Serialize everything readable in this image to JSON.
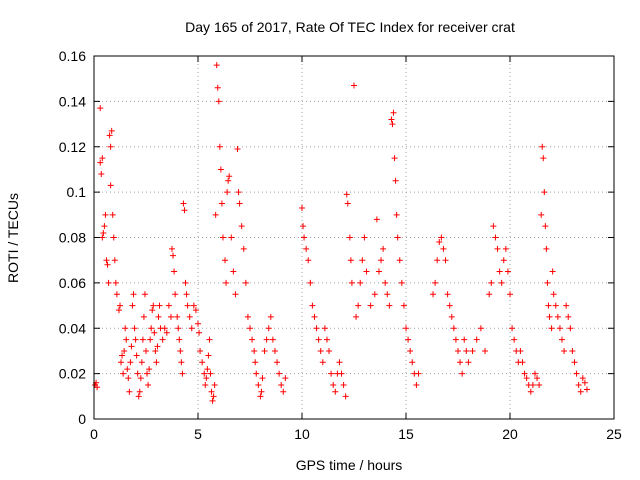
{
  "chart_data": {
    "type": "scatter",
    "title": "Day 165 of 2017, Rate Of TEC Index for receiver crat",
    "xlabel": "GPS time / hours",
    "ylabel": "ROTI / TECUs",
    "xlim": [
      0,
      25
    ],
    "ylim": [
      0,
      0.16
    ],
    "xticks": [
      0,
      5,
      10,
      15,
      20,
      25
    ],
    "yticks": [
      0,
      0.02,
      0.04,
      0.06,
      0.08,
      0.1,
      0.12,
      0.14,
      0.16
    ],
    "grid": true,
    "legend": "none",
    "marker": "plus",
    "color": "#ff0000",
    "series": [
      {
        "points": [
          [
            0.05,
            0.015
          ],
          [
            0.1,
            0.016
          ],
          [
            0.15,
            0.014
          ],
          [
            0.3,
            0.137
          ],
          [
            0.3,
            0.113
          ],
          [
            0.35,
            0.108
          ],
          [
            0.4,
            0.115
          ],
          [
            0.4,
            0.08
          ],
          [
            0.45,
            0.082
          ],
          [
            0.5,
            0.085
          ],
          [
            0.55,
            0.09
          ],
          [
            0.6,
            0.07
          ],
          [
            0.65,
            0.068
          ],
          [
            0.7,
            0.06
          ],
          [
            0.75,
            0.125
          ],
          [
            0.8,
            0.12
          ],
          [
            0.85,
            0.127
          ],
          [
            0.8,
            0.103
          ],
          [
            0.9,
            0.09
          ],
          [
            0.95,
            0.08
          ],
          [
            1.0,
            0.07
          ],
          [
            1.05,
            0.06
          ],
          [
            1.1,
            0.055
          ],
          [
            1.2,
            0.048
          ],
          [
            1.25,
            0.05
          ],
          [
            1.3,
            0.025
          ],
          [
            1.35,
            0.028
          ],
          [
            1.4,
            0.02
          ],
          [
            1.45,
            0.03
          ],
          [
            1.5,
            0.04
          ],
          [
            1.55,
            0.035
          ],
          [
            1.6,
            0.022
          ],
          [
            1.65,
            0.018
          ],
          [
            1.7,
            0.012
          ],
          [
            1.75,
            0.025
          ],
          [
            1.8,
            0.032
          ],
          [
            1.85,
            0.05
          ],
          [
            1.9,
            0.055
          ],
          [
            1.95,
            0.04
          ],
          [
            2.0,
            0.035
          ],
          [
            2.05,
            0.028
          ],
          [
            2.1,
            0.02
          ],
          [
            2.15,
            0.01
          ],
          [
            2.2,
            0.012
          ],
          [
            2.25,
            0.018
          ],
          [
            2.3,
            0.025
          ],
          [
            2.35,
            0.035
          ],
          [
            2.4,
            0.045
          ],
          [
            2.45,
            0.055
          ],
          [
            2.5,
            0.03
          ],
          [
            2.55,
            0.02
          ],
          [
            2.6,
            0.015
          ],
          [
            2.65,
            0.022
          ],
          [
            2.7,
            0.035
          ],
          [
            2.75,
            0.04
          ],
          [
            2.8,
            0.048
          ],
          [
            2.85,
            0.05
          ],
          [
            2.9,
            0.038
          ],
          [
            2.95,
            0.03
          ],
          [
            3.0,
            0.025
          ],
          [
            3.05,
            0.032
          ],
          [
            3.1,
            0.045
          ],
          [
            3.15,
            0.05
          ],
          [
            3.2,
            0.04
          ],
          [
            3.3,
            0.035
          ],
          [
            3.4,
            0.04
          ],
          [
            3.5,
            0.038
          ],
          [
            3.6,
            0.05
          ],
          [
            3.7,
            0.045
          ],
          [
            3.75,
            0.075
          ],
          [
            3.8,
            0.072
          ],
          [
            3.85,
            0.065
          ],
          [
            3.9,
            0.055
          ],
          [
            4.0,
            0.045
          ],
          [
            4.05,
            0.04
          ],
          [
            4.1,
            0.035
          ],
          [
            4.15,
            0.03
          ],
          [
            4.2,
            0.025
          ],
          [
            4.25,
            0.02
          ],
          [
            4.3,
            0.095
          ],
          [
            4.35,
            0.092
          ],
          [
            4.4,
            0.06
          ],
          [
            4.45,
            0.055
          ],
          [
            4.5,
            0.05
          ],
          [
            4.6,
            0.045
          ],
          [
            4.7,
            0.04
          ],
          [
            4.8,
            0.05
          ],
          [
            4.9,
            0.048
          ],
          [
            5.0,
            0.042
          ],
          [
            5.05,
            0.038
          ],
          [
            5.1,
            0.03
          ],
          [
            5.2,
            0.025
          ],
          [
            5.3,
            0.02
          ],
          [
            5.35,
            0.015
          ],
          [
            5.4,
            0.018
          ],
          [
            5.45,
            0.022
          ],
          [
            5.5,
            0.028
          ],
          [
            5.55,
            0.035
          ],
          [
            5.6,
            0.02
          ],
          [
            5.65,
            0.012
          ],
          [
            5.7,
            0.008
          ],
          [
            5.75,
            0.01
          ],
          [
            5.8,
            0.015
          ],
          [
            5.85,
            0.09
          ],
          [
            5.9,
            0.156
          ],
          [
            5.95,
            0.146
          ],
          [
            6.0,
            0.14
          ],
          [
            6.05,
            0.12
          ],
          [
            6.1,
            0.11
          ],
          [
            6.15,
            0.095
          ],
          [
            6.2,
            0.08
          ],
          [
            6.3,
            0.07
          ],
          [
            6.35,
            0.06
          ],
          [
            6.4,
            0.1
          ],
          [
            6.45,
            0.105
          ],
          [
            6.5,
            0.107
          ],
          [
            6.6,
            0.08
          ],
          [
            6.7,
            0.065
          ],
          [
            6.8,
            0.055
          ],
          [
            6.9,
            0.119
          ],
          [
            6.95,
            0.1
          ],
          [
            7.0,
            0.095
          ],
          [
            7.1,
            0.085
          ],
          [
            7.2,
            0.075
          ],
          [
            7.3,
            0.06
          ],
          [
            7.4,
            0.045
          ],
          [
            7.5,
            0.04
          ],
          [
            7.6,
            0.035
          ],
          [
            7.7,
            0.03
          ],
          [
            7.75,
            0.025
          ],
          [
            7.8,
            0.02
          ],
          [
            7.9,
            0.015
          ],
          [
            8.0,
            0.01
          ],
          [
            8.05,
            0.012
          ],
          [
            8.1,
            0.018
          ],
          [
            8.2,
            0.03
          ],
          [
            8.3,
            0.035
          ],
          [
            8.4,
            0.04
          ],
          [
            8.5,
            0.045
          ],
          [
            8.6,
            0.035
          ],
          [
            8.7,
            0.03
          ],
          [
            8.8,
            0.025
          ],
          [
            8.9,
            0.02
          ],
          [
            9.0,
            0.015
          ],
          [
            9.1,
            0.012
          ],
          [
            9.2,
            0.018
          ],
          [
            10.0,
            0.093
          ],
          [
            10.05,
            0.085
          ],
          [
            10.1,
            0.08
          ],
          [
            10.2,
            0.075
          ],
          [
            10.3,
            0.07
          ],
          [
            10.4,
            0.06
          ],
          [
            10.5,
            0.05
          ],
          [
            10.6,
            0.045
          ],
          [
            10.7,
            0.04
          ],
          [
            10.8,
            0.035
          ],
          [
            10.9,
            0.03
          ],
          [
            11.0,
            0.025
          ],
          [
            11.1,
            0.04
          ],
          [
            11.2,
            0.035
          ],
          [
            11.3,
            0.03
          ],
          [
            11.4,
            0.02
          ],
          [
            11.5,
            0.015
          ],
          [
            11.6,
            0.012
          ],
          [
            11.7,
            0.02
          ],
          [
            11.8,
            0.025
          ],
          [
            11.9,
            0.02
          ],
          [
            12.0,
            0.015
          ],
          [
            12.1,
            0.01
          ],
          [
            12.15,
            0.099
          ],
          [
            12.2,
            0.095
          ],
          [
            12.3,
            0.08
          ],
          [
            12.35,
            0.07
          ],
          [
            12.4,
            0.06
          ],
          [
            12.5,
            0.147
          ],
          [
            12.6,
            0.045
          ],
          [
            12.7,
            0.05
          ],
          [
            12.8,
            0.06
          ],
          [
            12.9,
            0.07
          ],
          [
            13.0,
            0.08
          ],
          [
            13.1,
            0.065
          ],
          [
            13.3,
            0.05
          ],
          [
            13.5,
            0.055
          ],
          [
            13.6,
            0.088
          ],
          [
            13.7,
            0.065
          ],
          [
            13.8,
            0.07
          ],
          [
            13.9,
            0.075
          ],
          [
            14.0,
            0.06
          ],
          [
            14.1,
            0.055
          ],
          [
            14.2,
            0.05
          ],
          [
            14.3,
            0.132
          ],
          [
            14.35,
            0.13
          ],
          [
            14.4,
            0.135
          ],
          [
            14.45,
            0.115
          ],
          [
            14.5,
            0.105
          ],
          [
            14.55,
            0.09
          ],
          [
            14.6,
            0.08
          ],
          [
            14.7,
            0.07
          ],
          [
            14.8,
            0.06
          ],
          [
            14.9,
            0.05
          ],
          [
            15.0,
            0.04
          ],
          [
            15.1,
            0.035
          ],
          [
            15.2,
            0.03
          ],
          [
            15.3,
            0.025
          ],
          [
            15.4,
            0.02
          ],
          [
            15.5,
            0.015
          ],
          [
            15.6,
            0.02
          ],
          [
            16.3,
            0.055
          ],
          [
            16.4,
            0.06
          ],
          [
            16.5,
            0.07
          ],
          [
            16.6,
            0.078
          ],
          [
            16.7,
            0.08
          ],
          [
            16.8,
            0.075
          ],
          [
            16.9,
            0.07
          ],
          [
            17.0,
            0.055
          ],
          [
            17.1,
            0.05
          ],
          [
            17.2,
            0.045
          ],
          [
            17.3,
            0.04
          ],
          [
            17.4,
            0.035
          ],
          [
            17.5,
            0.03
          ],
          [
            17.6,
            0.025
          ],
          [
            17.7,
            0.02
          ],
          [
            17.8,
            0.035
          ],
          [
            17.9,
            0.03
          ],
          [
            18.0,
            0.025
          ],
          [
            18.2,
            0.03
          ],
          [
            18.4,
            0.035
          ],
          [
            18.6,
            0.04
          ],
          [
            18.8,
            0.03
          ],
          [
            19.0,
            0.055
          ],
          [
            19.1,
            0.06
          ],
          [
            19.2,
            0.085
          ],
          [
            19.3,
            0.08
          ],
          [
            19.4,
            0.075
          ],
          [
            19.5,
            0.065
          ],
          [
            19.6,
            0.06
          ],
          [
            19.7,
            0.07
          ],
          [
            19.8,
            0.075
          ],
          [
            19.9,
            0.065
          ],
          [
            20.0,
            0.055
          ],
          [
            20.1,
            0.04
          ],
          [
            20.2,
            0.035
          ],
          [
            20.3,
            0.03
          ],
          [
            20.4,
            0.025
          ],
          [
            20.5,
            0.03
          ],
          [
            20.6,
            0.025
          ],
          [
            20.7,
            0.02
          ],
          [
            20.8,
            0.018
          ],
          [
            20.9,
            0.015
          ],
          [
            21.0,
            0.012
          ],
          [
            21.1,
            0.015
          ],
          [
            21.2,
            0.02
          ],
          [
            21.3,
            0.018
          ],
          [
            21.4,
            0.015
          ],
          [
            21.5,
            0.09
          ],
          [
            21.55,
            0.12
          ],
          [
            21.6,
            0.115
          ],
          [
            21.65,
            0.1
          ],
          [
            21.7,
            0.085
          ],
          [
            21.75,
            0.075
          ],
          [
            21.8,
            0.06
          ],
          [
            21.85,
            0.05
          ],
          [
            21.9,
            0.045
          ],
          [
            22.0,
            0.04
          ],
          [
            22.05,
            0.065
          ],
          [
            22.1,
            0.055
          ],
          [
            22.2,
            0.05
          ],
          [
            22.3,
            0.045
          ],
          [
            22.4,
            0.04
          ],
          [
            22.5,
            0.035
          ],
          [
            22.6,
            0.03
          ],
          [
            22.7,
            0.05
          ],
          [
            22.8,
            0.045
          ],
          [
            22.9,
            0.04
          ],
          [
            23.0,
            0.03
          ],
          [
            23.1,
            0.025
          ],
          [
            23.2,
            0.02
          ],
          [
            23.3,
            0.015
          ],
          [
            23.4,
            0.012
          ],
          [
            23.5,
            0.018
          ],
          [
            23.6,
            0.016
          ],
          [
            23.7,
            0.013
          ]
        ]
      }
    ]
  }
}
